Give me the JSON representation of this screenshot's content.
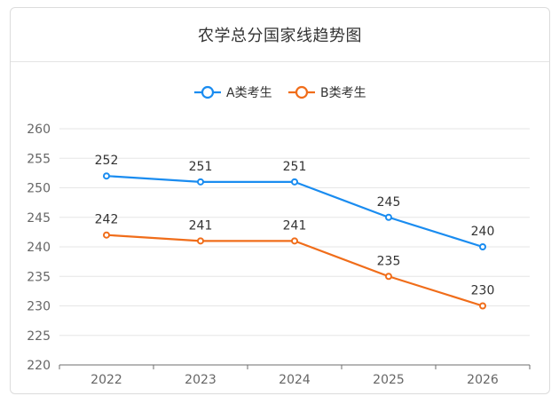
{
  "chart_data": {
    "type": "line",
    "title": "农学总分国家线趋势图",
    "categories": [
      "2022",
      "2023",
      "2024",
      "2025",
      "2026"
    ],
    "series": [
      {
        "name": "A类考生",
        "values": [
          252,
          251,
          251,
          245,
          240
        ],
        "color": "#1a8cf0"
      },
      {
        "name": "B类考生",
        "values": [
          242,
          241,
          241,
          235,
          230
        ],
        "color": "#f06d1a"
      }
    ],
    "ylim": [
      220,
      260
    ],
    "yticks": [
      "220",
      "225",
      "230",
      "235",
      "240",
      "245",
      "250",
      "255",
      "260"
    ],
    "grid": true,
    "legend_position": "top-center",
    "data_labels": true
  }
}
